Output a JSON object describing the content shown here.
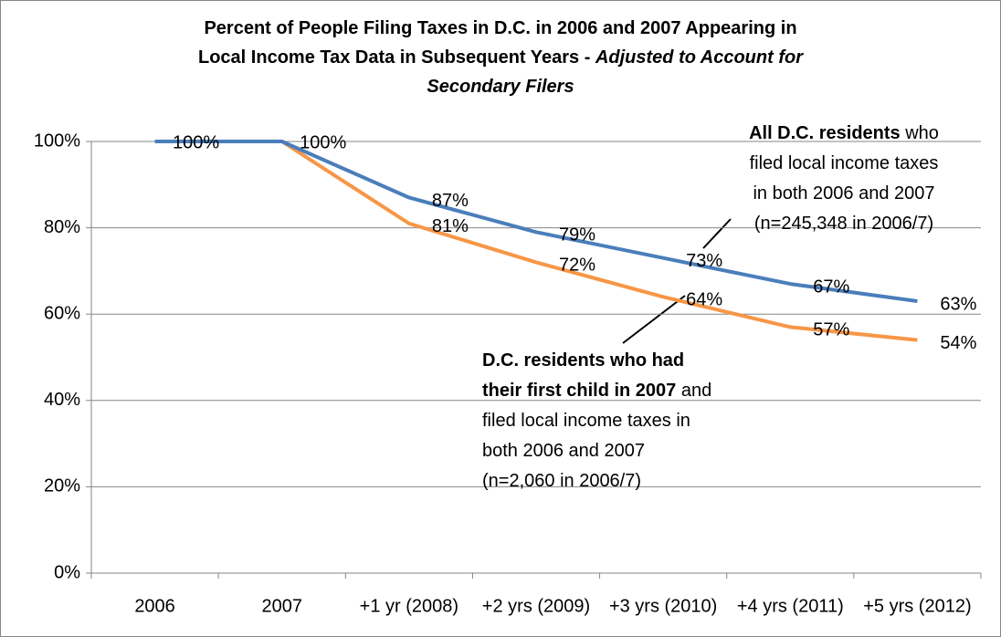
{
  "chart_data": {
    "type": "line",
    "title": [
      [
        {
          "text": "Percent of People Filing Taxes in D.C. in 2006 and 2007 Appearing in"
        }
      ],
      [
        {
          "text": "Local Income Tax Data in Subsequent Years - "
        },
        {
          "text": "Adjusted to Account for",
          "italic": true
        }
      ],
      [
        {
          "text": "Secondary Filers",
          "italic": true
        }
      ]
    ],
    "categories": [
      "2006",
      "2007",
      "+1 yr (2008)",
      "+2 yrs (2009)",
      "+3 yrs (2010)",
      "+4 yrs (2011)",
      "+5 yrs (2012)"
    ],
    "series": [
      {
        "color": "#4a7ebb",
        "values": [
          100,
          100,
          87,
          79,
          73,
          67,
          63
        ],
        "value_labels": [
          "100%",
          "100%",
          "87%",
          "79%",
          "73%",
          "67%",
          "63%"
        ]
      },
      {
        "color": "#f79646",
        "values": [
          100,
          100,
          81,
          72,
          64,
          57,
          54
        ],
        "value_labels": [
          null,
          null,
          "81%",
          "72%",
          "64%",
          "57%",
          "54%"
        ]
      }
    ],
    "ylim": [
      0,
      100
    ],
    "yticks": [
      {
        "value": 0,
        "label": "0%"
      },
      {
        "value": 20,
        "label": "20%"
      },
      {
        "value": 40,
        "label": "40%"
      },
      {
        "value": 60,
        "label": "60%"
      },
      {
        "value": 80,
        "label": "80%"
      },
      {
        "value": 100,
        "label": "100%"
      }
    ],
    "grid": true,
    "annotations": [
      {
        "lines": [
          [
            {
              "text": "All D.C. residents",
              "bold": true
            },
            {
              "text": " who"
            }
          ],
          [
            {
              "text": "filed local income taxes"
            }
          ],
          [
            {
              "text": "in both 2006 and 2007"
            }
          ],
          [
            {
              "text": "(n=245,348 in 2006/7)"
            }
          ]
        ]
      },
      {
        "lines": [
          [
            {
              "text": "D.C. residents who had",
              "bold": true
            }
          ],
          [
            {
              "text": "their first child in 2007",
              "bold": true
            },
            {
              "text": " and"
            }
          ],
          [
            {
              "text": "filed local income taxes in"
            }
          ],
          [
            {
              "text": "both 2006 and 2007"
            }
          ],
          [
            {
              "text": "(n=2,060 in 2006/7)"
            }
          ]
        ]
      }
    ]
  }
}
